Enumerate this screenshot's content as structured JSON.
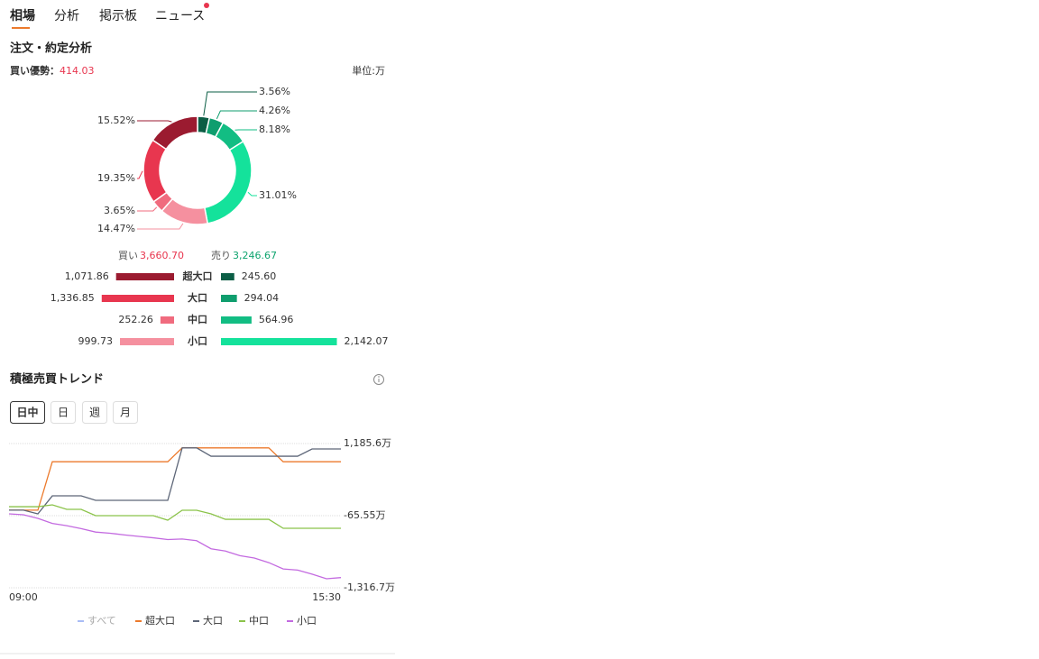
{
  "tabs": [
    "相場",
    "分析",
    "掲示板",
    "ニュース"
  ],
  "order_analysis": {
    "title": "注文・約定分析",
    "buy_advantage_label": "買い優勢：",
    "buy_advantage": 414.03,
    "unit": "単位:万"
  },
  "trend": {
    "title": "積極売買トレンド",
    "periods": [
      "日中",
      "日",
      "週",
      "月"
    ]
  },
  "chart_data": [
    {
      "type": "pie",
      "hole": true,
      "series": [
        {
          "colors": [
            "#0b5e45",
            "#0f9e6e",
            "#12bd83",
            "#14e29b"
          ],
          "values": [
            3.56,
            4.26,
            8.18,
            31.01
          ],
          "value_labels": [
            "3.56%",
            "4.26%",
            "8.18%",
            "31.01%"
          ]
        },
        {
          "colors": [
            "#9b1b30",
            "#e8364f",
            "#f06b7e",
            "#f5909f"
          ],
          "values": [
            15.52,
            19.35,
            3.65,
            14.47
          ],
          "value_labels": [
            "15.52%",
            "19.35%",
            "3.65%",
            "14.47%"
          ]
        }
      ]
    },
    {
      "type": "bar",
      "orientation": "diverging",
      "categories": [
        "超大口",
        "大口",
        "中口",
        "小口"
      ],
      "series": [
        {
          "name": "買い",
          "total": "3,660.70",
          "color": "#e8364f",
          "colors": [
            "#9b1b30",
            "#e8364f",
            "#f06b7e",
            "#f5909f"
          ],
          "values": [
            1071.86,
            1336.85,
            252.26,
            999.73
          ],
          "value_labels": [
            "1,071.86",
            "1,336.85",
            "252.26",
            "999.73"
          ]
        },
        {
          "name": "売り",
          "total": "3,246.67",
          "color": "#0fa46f",
          "colors": [
            "#0b5e45",
            "#0f9e6e",
            "#12bd83",
            "#14e29b"
          ],
          "values": [
            245.6,
            294.04,
            564.96,
            2142.07
          ],
          "value_labels": [
            "245.60",
            "294.04",
            "564.96",
            "2,142.07"
          ]
        }
      ]
    },
    {
      "type": "line",
      "grid": true,
      "categories": [
        "09:00",
        null,
        null,
        null,
        null,
        null,
        null,
        null,
        null,
        null,
        null,
        null,
        null,
        null,
        null,
        null,
        null,
        null,
        null,
        null,
        null,
        null,
        null,
        "15:30"
      ],
      "ylim": [
        -1316.7,
        1185.6
      ],
      "yticks": [
        {
          "value": 1185.6,
          "label": "1,185.6万"
        },
        {
          "value": -65.55,
          "label": "-65.55万"
        },
        {
          "value": -1316.7,
          "label": "-1,316.7万"
        }
      ],
      "legend_extra": {
        "name": "すべて",
        "color": "#a9bcf5"
      },
      "series": [
        {
          "name": "超大口",
          "color": "#ec7a2c",
          "values": [
            30,
            30,
            30,
            870,
            870,
            870,
            870,
            870,
            870,
            870,
            870,
            870,
            1110,
            1110,
            1110,
            1110,
            1110,
            1110,
            1110,
            870,
            870,
            870,
            870,
            870
          ]
        },
        {
          "name": "大口",
          "color": "#5d6678",
          "values": [
            30,
            30,
            -35,
            278,
            278,
            278,
            200,
            200,
            200,
            200,
            200,
            200,
            1110,
            1110,
            966,
            966,
            966,
            966,
            966,
            966,
            966,
            1092,
            1092,
            1092
          ]
        },
        {
          "name": "中口",
          "color": "#8bc34a",
          "values": [
            90,
            90,
            90,
            122,
            44,
            44,
            -66,
            -66,
            -66,
            -66,
            -66,
            -144,
            28,
            28,
            -35,
            -129,
            -129,
            -129,
            -129,
            -285,
            -285,
            -285,
            -285,
            -285
          ]
        },
        {
          "name": "小口",
          "color": "#c36ae0",
          "values": [
            -34,
            -50,
            -112,
            -200,
            -240,
            -290,
            -350,
            -370,
            -400,
            -425,
            -450,
            -480,
            -470,
            -500,
            -640,
            -680,
            -760,
            -800,
            -880,
            -990,
            -1010,
            -1080,
            -1160,
            -1140
          ]
        }
      ]
    }
  ]
}
